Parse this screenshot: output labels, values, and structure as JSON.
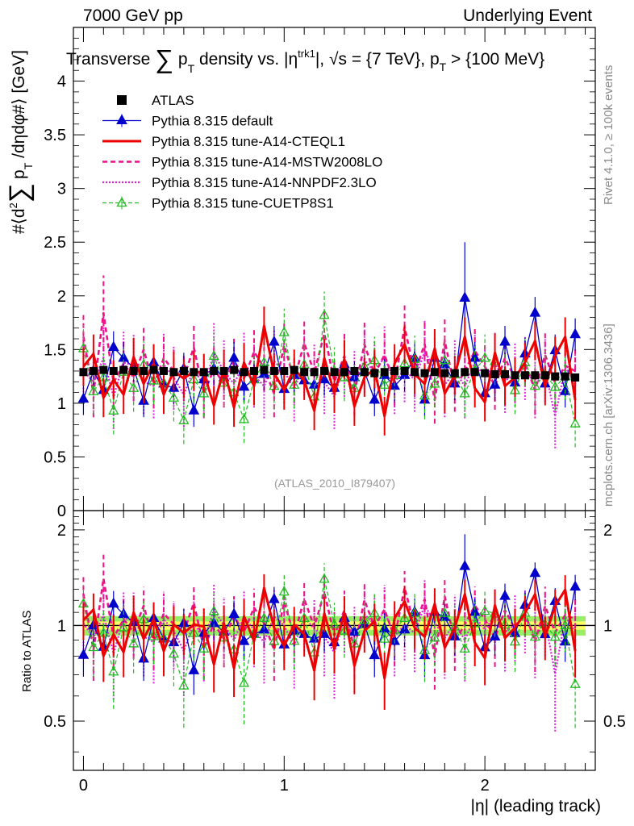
{
  "header": {
    "left": "7000 GeV pp",
    "right": "Underlying Event"
  },
  "side": {
    "rivet": "Rivet 4.1.0, ≥ 100k events",
    "mcplots": "mcplots.cern.ch [arXiv:1306.3436]"
  },
  "chart_data": {
    "type": "line",
    "title": {
      "prefix": "Transverse ",
      "sum": "∑",
      "p": "p",
      "sub": "T",
      "middle": " density vs. |η",
      "sup": "trk1",
      "suffix": "|, √s = {7 TeV}, p",
      "sub2": "T",
      "tail": " > {100 MeV}"
    },
    "ylabel": {
      "prefix": "#⟨d",
      "sup": "2",
      "sum": "∑",
      "p": "p",
      "sub": "T",
      "suffix": " /dηdφ#⟩ [GeV]"
    },
    "xlabel": "|η| (leading track)",
    "ratio_ylabel": "Ratio to ATLAS",
    "analysis_tag": "(ATLAS_2010_I879407)",
    "xlim": [
      -0.05,
      2.55
    ],
    "ylim": [
      0,
      4.5
    ],
    "ratio_ylim": [
      0.35,
      2.3
    ],
    "x_ticks": [
      "0",
      "1",
      "2"
    ],
    "y_ticks": [
      "0",
      "0.5",
      "1",
      "1.5",
      "2",
      "2.5",
      "3",
      "3.5",
      "4"
    ],
    "ratio_ticks": [
      "0.5",
      "1",
      "2"
    ],
    "x": [
      0.0,
      0.05,
      0.1,
      0.15,
      0.2,
      0.25,
      0.3,
      0.35,
      0.4,
      0.45,
      0.5,
      0.55,
      0.6,
      0.65,
      0.7,
      0.75,
      0.8,
      0.85,
      0.9,
      0.95,
      1.0,
      1.05,
      1.1,
      1.15,
      1.2,
      1.25,
      1.3,
      1.35,
      1.4,
      1.45,
      1.5,
      1.55,
      1.6,
      1.65,
      1.7,
      1.75,
      1.8,
      1.85,
      1.9,
      1.95,
      2.0,
      2.05,
      2.1,
      2.15,
      2.2,
      2.25,
      2.3,
      2.35,
      2.4,
      2.45
    ],
    "series": [
      {
        "name": "ATLAS",
        "style": "data",
        "color": "#000000",
        "values": [
          1.29,
          1.3,
          1.31,
          1.3,
          1.31,
          1.3,
          1.3,
          1.31,
          1.3,
          1.29,
          1.3,
          1.29,
          1.29,
          1.3,
          1.3,
          1.31,
          1.29,
          1.3,
          1.31,
          1.3,
          1.3,
          1.31,
          1.29,
          1.29,
          1.3,
          1.29,
          1.29,
          1.3,
          1.29,
          1.28,
          1.29,
          1.3,
          1.3,
          1.29,
          1.28,
          1.29,
          1.28,
          1.28,
          1.29,
          1.29,
          1.28,
          1.27,
          1.27,
          1.26,
          1.26,
          1.26,
          1.26,
          1.25,
          1.25,
          1.24
        ],
        "errors": [
          0.03,
          0.03,
          0.03,
          0.03,
          0.03,
          0.03,
          0.03,
          0.03,
          0.03,
          0.03,
          0.03,
          0.03,
          0.03,
          0.03,
          0.03,
          0.03,
          0.03,
          0.03,
          0.03,
          0.03,
          0.03,
          0.03,
          0.03,
          0.03,
          0.03,
          0.03,
          0.03,
          0.03,
          0.03,
          0.03,
          0.03,
          0.03,
          0.03,
          0.03,
          0.03,
          0.03,
          0.03,
          0.03,
          0.03,
          0.03,
          0.03,
          0.03,
          0.03,
          0.03,
          0.03,
          0.03,
          0.03,
          0.03,
          0.03,
          0.03
        ]
      },
      {
        "name": "Pythia 8.315 default",
        "style": "blue-triangle",
        "color": "#0000cc",
        "values": [
          1.04,
          1.3,
          1.12,
          1.52,
          1.42,
          1.33,
          1.02,
          1.38,
          1.18,
          1.14,
          1.32,
          0.93,
          1.22,
          1.32,
          1.24,
          1.42,
          1.15,
          1.22,
          1.27,
          1.57,
          1.13,
          1.26,
          1.21,
          1.17,
          1.22,
          1.14,
          1.36,
          1.24,
          1.3,
          1.03,
          1.26,
          1.16,
          1.26,
          1.42,
          1.03,
          1.42,
          1.36,
          1.18,
          1.98,
          1.42,
          1.09,
          1.17,
          1.57,
          1.19,
          1.46,
          1.84,
          1.18,
          1.49,
          1.11,
          1.64
        ],
        "errors": [
          0.15,
          0.15,
          0.15,
          0.15,
          0.15,
          0.15,
          0.15,
          0.15,
          0.15,
          0.15,
          0.15,
          0.15,
          0.15,
          0.15,
          0.15,
          0.15,
          0.15,
          0.15,
          0.15,
          0.15,
          0.15,
          0.15,
          0.15,
          0.15,
          0.15,
          0.15,
          0.15,
          0.15,
          0.15,
          0.15,
          0.15,
          0.15,
          0.15,
          0.15,
          0.15,
          0.15,
          0.15,
          0.15,
          0.52,
          0.15,
          0.15,
          0.15,
          0.15,
          0.15,
          0.15,
          0.15,
          0.15,
          0.15,
          0.15,
          0.15
        ]
      },
      {
        "name": "Pythia 8.315 tune-A14-CTEQL1",
        "style": "red-solid",
        "color": "#ee0000",
        "values": [
          1.34,
          1.46,
          1.05,
          1.22,
          1.08,
          1.43,
          1.18,
          1.37,
          1.08,
          1.3,
          1.23,
          1.3,
          1.28,
          0.98,
          1.32,
          0.96,
          1.38,
          1.16,
          1.72,
          1.28,
          1.12,
          1.32,
          1.21,
          0.93,
          1.42,
          1.09,
          1.41,
          0.97,
          1.24,
          1.32,
          0.88,
          1.37,
          1.55,
          1.27,
          1.18,
          1.51,
          1.09,
          1.26,
          1.62,
          1.14,
          1.01,
          1.47,
          1.16,
          1.24,
          1.38,
          1.58,
          1.16,
          1.44,
          1.62,
          1.03
        ],
        "errors": [
          0.18,
          0.18,
          0.18,
          0.18,
          0.18,
          0.18,
          0.18,
          0.18,
          0.18,
          0.18,
          0.18,
          0.18,
          0.18,
          0.18,
          0.18,
          0.18,
          0.18,
          0.18,
          0.18,
          0.18,
          0.18,
          0.18,
          0.18,
          0.18,
          0.18,
          0.18,
          0.18,
          0.18,
          0.18,
          0.18,
          0.18,
          0.18,
          0.18,
          0.18,
          0.18,
          0.18,
          0.18,
          0.18,
          0.18,
          0.18,
          0.18,
          0.18,
          0.18,
          0.18,
          0.18,
          0.18,
          0.18,
          0.18,
          0.18,
          0.18
        ]
      },
      {
        "name": "Pythia 8.315 tune-A14-MSTW2008LO",
        "style": "magenta-dashed",
        "color": "#ee1188",
        "values": [
          1.62,
          1.09,
          1.84,
          1.19,
          1.37,
          1.24,
          1.5,
          1.17,
          1.42,
          1.3,
          1.24,
          1.52,
          1.09,
          1.32,
          1.18,
          1.4,
          1.23,
          1.48,
          1.33,
          1.09,
          1.54,
          1.22,
          1.56,
          1.28,
          1.65,
          1.2,
          1.44,
          1.1,
          1.55,
          1.27,
          1.45,
          1.19,
          1.71,
          1.28,
          1.55,
          1.03,
          1.58,
          1.14,
          1.3,
          1.49,
          1.34,
          1.16,
          1.42,
          1.23,
          1.38,
          1.12,
          1.45,
          1.19,
          1.35,
          1.3
        ],
        "errors": [
          0.22,
          0.22,
          0.35,
          0.22,
          0.22,
          0.22,
          0.22,
          0.22,
          0.22,
          0.22,
          0.22,
          0.22,
          0.22,
          0.22,
          0.22,
          0.22,
          0.22,
          0.22,
          0.22,
          0.22,
          0.22,
          0.22,
          0.22,
          0.22,
          0.22,
          0.22,
          0.22,
          0.22,
          0.22,
          0.22,
          0.22,
          0.22,
          0.22,
          0.22,
          0.22,
          0.22,
          0.22,
          0.22,
          0.22,
          0.22,
          0.22,
          0.22,
          0.22,
          0.22,
          0.22,
          0.22,
          0.22,
          0.22,
          0.22,
          0.22
        ]
      },
      {
        "name": "Pythia 8.315 tune-A14-NNPDF2.3LO",
        "style": "magenta-dotted",
        "color": "#dd22dd",
        "values": [
          1.31,
          1.19,
          1.42,
          1.06,
          1.38,
          1.35,
          1.2,
          1.16,
          1.36,
          1.24,
          1.08,
          1.32,
          1.16,
          1.46,
          1.3,
          1.18,
          1.37,
          1.26,
          1.16,
          1.39,
          1.3,
          1.13,
          1.37,
          1.26,
          1.2,
          1.06,
          1.36,
          1.2,
          1.4,
          1.29,
          1.43,
          1.2,
          1.31,
          1.22,
          1.48,
          1.32,
          1.17,
          1.3,
          1.16,
          1.38,
          1.24,
          1.37,
          1.21,
          1.27,
          1.33,
          1.16,
          1.31,
          0.88,
          1.33,
          1.2
        ],
        "errors": [
          0.3,
          0.3,
          0.3,
          0.3,
          0.3,
          0.3,
          0.3,
          0.3,
          0.3,
          0.3,
          0.3,
          0.3,
          0.3,
          0.3,
          0.3,
          0.3,
          0.3,
          0.3,
          0.3,
          0.3,
          0.3,
          0.3,
          0.3,
          0.3,
          0.3,
          0.3,
          0.3,
          0.3,
          0.3,
          0.3,
          0.3,
          0.3,
          0.3,
          0.3,
          0.3,
          0.3,
          0.3,
          0.3,
          0.3,
          0.3,
          0.3,
          0.3,
          0.3,
          0.3,
          0.3,
          0.3,
          0.3,
          0.3,
          0.3,
          0.3
        ]
      },
      {
        "name": "Pythia 8.315 tune-CUETP8S1",
        "style": "green-triangle",
        "color": "#22bb22",
        "values": [
          1.51,
          1.11,
          1.24,
          0.93,
          1.29,
          1.14,
          1.36,
          1.21,
          1.19,
          1.05,
          0.84,
          1.22,
          1.09,
          1.44,
          1.19,
          1.1,
          0.85,
          1.22,
          1.38,
          1.16,
          1.66,
          1.17,
          1.36,
          1.06,
          1.82,
          1.3,
          1.24,
          1.14,
          1.34,
          1.4,
          1.17,
          1.26,
          1.37,
          1.41,
          1.07,
          1.18,
          1.4,
          1.27,
          1.09,
          1.31,
          1.42,
          1.39,
          1.28,
          1.12,
          1.38,
          1.16,
          1.27,
          1.15,
          1.25,
          0.81
        ],
        "errors": [
          0.22,
          0.22,
          0.22,
          0.22,
          0.22,
          0.22,
          0.22,
          0.22,
          0.22,
          0.22,
          0.22,
          0.22,
          0.22,
          0.22,
          0.22,
          0.22,
          0.22,
          0.22,
          0.22,
          0.22,
          0.22,
          0.22,
          0.22,
          0.22,
          0.22,
          0.22,
          0.22,
          0.22,
          0.22,
          0.22,
          0.22,
          0.22,
          0.22,
          0.22,
          0.22,
          0.22,
          0.22,
          0.22,
          0.22,
          0.22,
          0.22,
          0.22,
          0.22,
          0.22,
          0.22,
          0.22,
          0.22,
          0.22,
          0.22,
          0.22
        ]
      }
    ],
    "ratio_band": {
      "inner_color": "#ffff66",
      "outer_color": "#99ee66",
      "inner_halfwidth": 0.03,
      "outer_halfwidth": 0.07
    }
  }
}
